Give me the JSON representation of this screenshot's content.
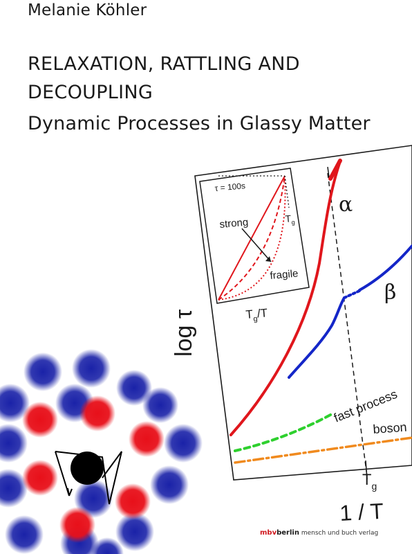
{
  "cover": {
    "author": "Melanie Köhler",
    "title": "RELAXATION, RATTLING AND DECOUPLING",
    "subtitle": "Dynamic Processes in Glassy Matter"
  },
  "figure": {
    "y_axis_label": "log τ",
    "x_axis_label": "1 / T",
    "tg_label_base": "T",
    "tg_label_sub": "g",
    "curve_labels": {
      "alpha": "α",
      "beta": "β",
      "fast": "fast process",
      "boson": "boson"
    },
    "inset": {
      "tau_label": "τ = 100s",
      "strong": "strong",
      "fragile": "fragile",
      "tg_label_base": "T",
      "tg_label_sub": "g",
      "x_label_base": "T",
      "x_label_sub": "g",
      "x_label_suffix": "/T"
    },
    "colors": {
      "alpha": "#e0161c",
      "beta": "#1426c8",
      "fast": "#2ed02e",
      "boson": "#f08a1e",
      "particle_red": "#e8101a",
      "particle_blue": "#1a22a8"
    }
  },
  "publisher": {
    "brand_mbv": "mbv",
    "brand_berlin": "berlin",
    "rest": "mensch und buch verlag"
  }
}
